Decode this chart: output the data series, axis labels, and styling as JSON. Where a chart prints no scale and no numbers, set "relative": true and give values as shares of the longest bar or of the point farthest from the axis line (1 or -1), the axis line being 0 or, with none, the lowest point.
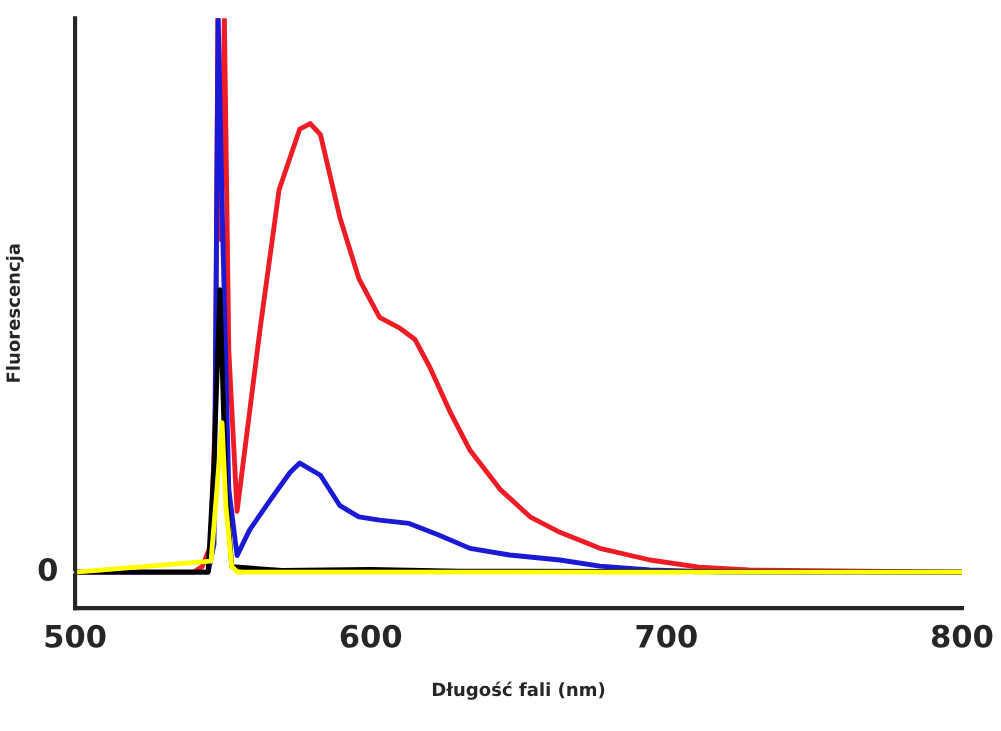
{
  "chart_data": {
    "type": "line",
    "xlabel": "Długość fali (nm)",
    "ylabel": "Fluorescencja",
    "relative": true,
    "xlim": [
      500,
      800
    ],
    "xticks": [
      500,
      600,
      700,
      800
    ],
    "annotations": [
      "0"
    ],
    "grid": false,
    "marker": "none",
    "line_style": "solid",
    "series": [
      {
        "color": "#ee1c24",
        "x": [
          500,
          540,
          543,
          546,
          547.5,
          548.3,
          549.3,
          550.5,
          552,
          554.8,
          562.6,
          569,
          576,
          579.5,
          583,
          589.6,
          596,
          603,
          610,
          615,
          620,
          626.8,
          633.6,
          643.7,
          653.9,
          664,
          677.5,
          694.5,
          711,
          728,
          750,
          800
        ],
        "values": [
          0,
          0,
          0.01,
          0.05,
          0.3,
          1,
          0.6,
          1,
          0.4,
          0.11,
          0.44,
          0.69,
          0.8,
          0.81,
          0.79,
          0.64,
          0.53,
          0.46,
          0.44,
          0.42,
          0.37,
          0.29,
          0.22,
          0.15,
          0.1,
          0.072,
          0.043,
          0.022,
          0.009,
          0.004,
          null,
          0
        ]
      },
      {
        "color": "#1a1ad6",
        "x": [
          500,
          545,
          547,
          548.4,
          550,
          552,
          554.8,
          559,
          566,
          572.7,
          576,
          583,
          589.6,
          596,
          603,
          613,
          623,
          633.6,
          647,
          664,
          677.5,
          694.5,
          720,
          800
        ],
        "values": [
          0,
          0,
          0.05,
          1,
          0.6,
          0.15,
          0.03,
          0.076,
          0.13,
          0.18,
          0.197,
          0.175,
          0.12,
          0.1,
          0.094,
          0.088,
          0.067,
          0.043,
          0.031,
          0.022,
          0.011,
          0.004,
          0,
          0
        ]
      },
      {
        "color": "#000000",
        "x": [
          500,
          545,
          547,
          549,
          551,
          553,
          570,
          600,
          630,
          800
        ],
        "values": [
          0,
          0,
          0.2,
          0.51,
          0.15,
          0.01,
          0.003,
          0.005,
          0.002,
          0
        ]
      },
      {
        "color": "#ffff00",
        "x": [
          500,
          546,
          548,
          549.7,
          551,
          553,
          555,
          800
        ],
        "values": [
          0,
          0.02,
          0.15,
          0.27,
          0.12,
          0.01,
          0,
          0
        ]
      }
    ]
  }
}
